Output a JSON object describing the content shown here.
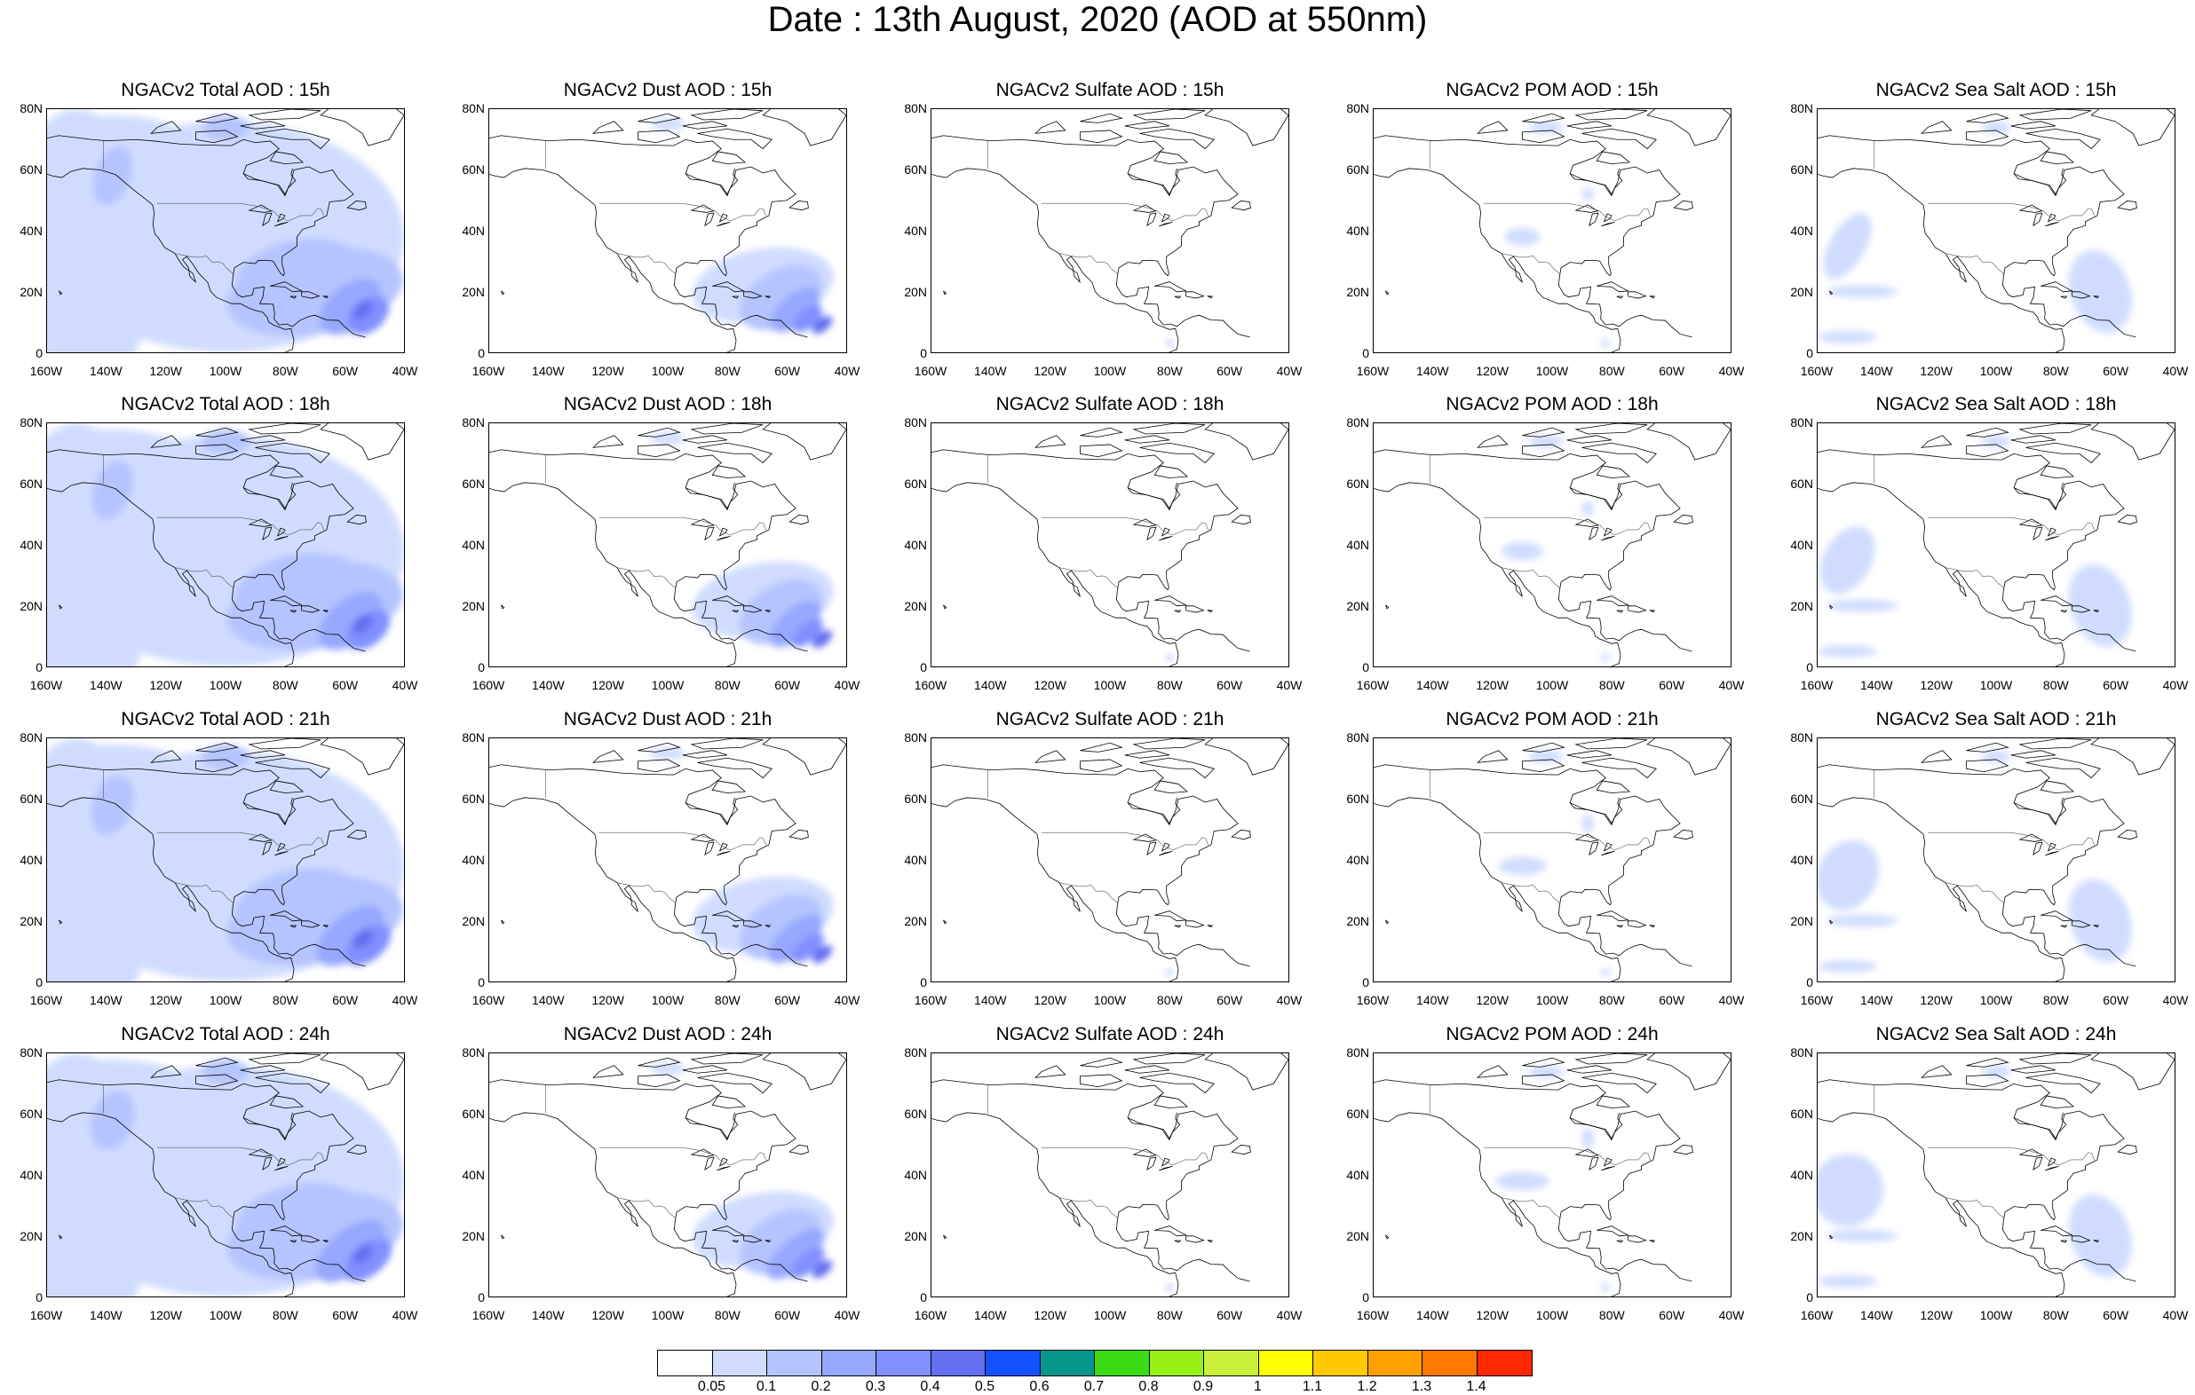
{
  "figure": {
    "title": "Date : 13th August, 2020 (AOD at 550nm)"
  },
  "panels": [
    {
      "title": "NGACv2 Total AOD : 15h",
      "variable": "total",
      "hour": "15h"
    },
    {
      "title": "NGACv2 Dust AOD : 15h",
      "variable": "dust",
      "hour": "15h"
    },
    {
      "title": "NGACv2 Sulfate AOD : 15h",
      "variable": "sulfate",
      "hour": "15h"
    },
    {
      "title": "NGACv2 POM AOD : 15h",
      "variable": "pom",
      "hour": "15h"
    },
    {
      "title": "NGACv2 Sea Salt AOD : 15h",
      "variable": "seasalt",
      "hour": "15h"
    },
    {
      "title": "NGACv2 Total AOD : 18h",
      "variable": "total",
      "hour": "18h"
    },
    {
      "title": "NGACv2 Dust AOD : 18h",
      "variable": "dust",
      "hour": "18h"
    },
    {
      "title": "NGACv2 Sulfate AOD : 18h",
      "variable": "sulfate",
      "hour": "18h"
    },
    {
      "title": "NGACv2 POM AOD : 18h",
      "variable": "pom",
      "hour": "18h"
    },
    {
      "title": "NGACv2 Sea Salt AOD : 18h",
      "variable": "seasalt",
      "hour": "18h"
    },
    {
      "title": "NGACv2 Total AOD : 21h",
      "variable": "total",
      "hour": "21h"
    },
    {
      "title": "NGACv2 Dust AOD : 21h",
      "variable": "dust",
      "hour": "21h"
    },
    {
      "title": "NGACv2 Sulfate AOD : 21h",
      "variable": "sulfate",
      "hour": "21h"
    },
    {
      "title": "NGACv2 POM AOD : 21h",
      "variable": "pom",
      "hour": "21h"
    },
    {
      "title": "NGACv2 Sea Salt AOD : 21h",
      "variable": "seasalt",
      "hour": "21h"
    },
    {
      "title": "NGACv2 Total AOD : 24h",
      "variable": "total",
      "hour": "24h"
    },
    {
      "title": "NGACv2 Dust AOD : 24h",
      "variable": "dust",
      "hour": "24h"
    },
    {
      "title": "NGACv2 Sulfate AOD : 24h",
      "variable": "sulfate",
      "hour": "24h"
    },
    {
      "title": "NGACv2 POM AOD : 24h",
      "variable": "pom",
      "hour": "24h"
    },
    {
      "title": "NGACv2 Sea Salt  AOD : 24h",
      "variable": "seasalt",
      "hour": "24h"
    }
  ],
  "axes": {
    "lat_ticks": [
      "80N",
      "60N",
      "40N",
      "20N",
      "0"
    ],
    "lat_values": [
      80,
      60,
      40,
      20,
      0
    ],
    "lon_ticks": [
      "160W",
      "140W",
      "120W",
      "100W",
      "80W",
      "60W",
      "40W"
    ],
    "lon_values": [
      -160,
      -140,
      -120,
      -100,
      -80,
      -60,
      -40
    ],
    "lat_range": [
      0,
      80
    ],
    "lon_range": [
      -160,
      -40
    ]
  },
  "colorbar": {
    "colors": [
      "#ffffff",
      "#d0dcff",
      "#b4c4ff",
      "#96a8ff",
      "#8090ff",
      "#6470f0",
      "#1450ff",
      "#05968c",
      "#3cdc14",
      "#96f014",
      "#c8f03c",
      "#ffff00",
      "#ffc800",
      "#ffa000",
      "#ff7800",
      "#ff2800"
    ],
    "labels": [
      "0.05",
      "0.1",
      "0.2",
      "0.3",
      "0.4",
      "0.5",
      "0.6",
      "0.7",
      "0.8",
      "0.9",
      "1",
      "1.1",
      "1.2",
      "1.3",
      "1.4"
    ]
  }
}
